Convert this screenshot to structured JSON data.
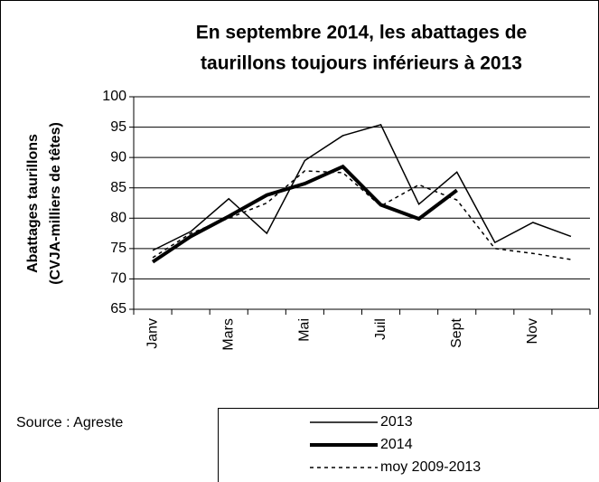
{
  "chart_data": {
    "type": "line",
    "title": [
      "En septembre 2014, les abattages de",
      "taurillons toujours inférieurs à 2013"
    ],
    "y_label": [
      "Abattages taurillons",
      "(CVJA-milliers de têtes)"
    ],
    "source": "Source : Agreste",
    "categories": [
      "Janv",
      null,
      "Mars",
      null,
      "Mai",
      null,
      "Juil",
      null,
      "Sept",
      null,
      "Nov",
      null
    ],
    "series": [
      {
        "name": "2013",
        "color": "#000000",
        "width": 1.5,
        "dash": false,
        "values": [
          74.7,
          77.8,
          83.2,
          77.5,
          89.5,
          93.6,
          95.4,
          82.3,
          87.6,
          76.0,
          79.3,
          77.0
        ]
      },
      {
        "name": "2014",
        "color": "#000000",
        "width": 4,
        "dash": false,
        "values": [
          72.8,
          77.0,
          80.3,
          83.8,
          85.7,
          88.5,
          82.2,
          79.9,
          84.6,
          null,
          null,
          null
        ]
      },
      {
        "name": "moy 2009-2013",
        "color": "#000000",
        "width": 1.5,
        "dash": true,
        "values": [
          73.5,
          77.5,
          80.0,
          82.5,
          87.8,
          87.5,
          82.0,
          85.5,
          83.0,
          75.0,
          74.2,
          73.2
        ]
      }
    ],
    "ylim": [
      65,
      100
    ],
    "yticks": [
      65,
      70,
      75,
      80,
      85,
      90,
      95,
      100
    ],
    "grid": true
  }
}
